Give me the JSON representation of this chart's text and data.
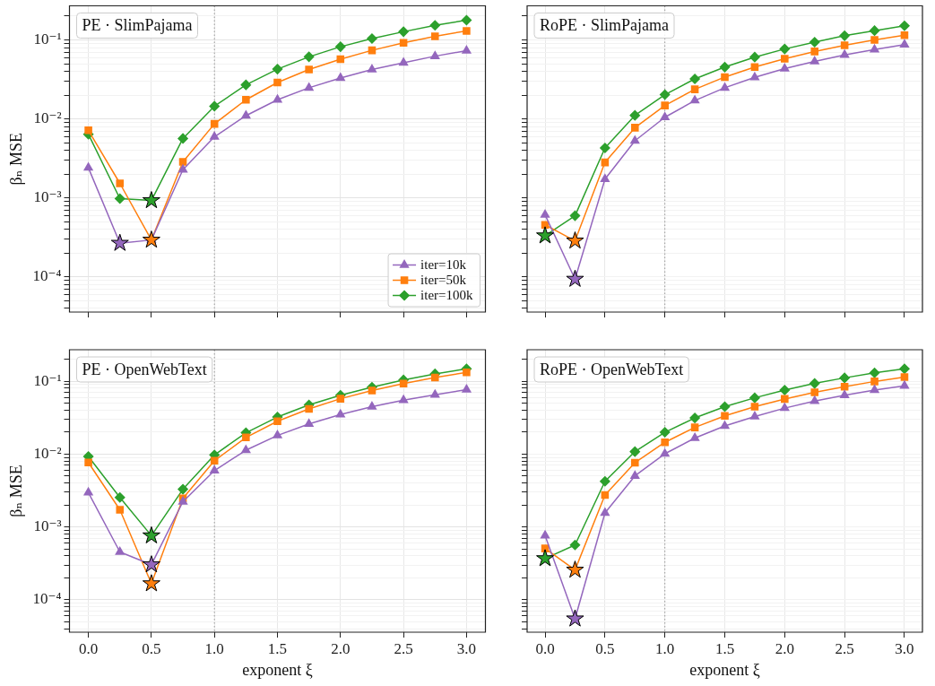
{
  "chart_data": [
    {
      "type": "line",
      "title": "PE · SlimPajama",
      "ylabel": "βₙ MSE",
      "x": [
        0,
        0.25,
        0.5,
        0.75,
        1,
        1.25,
        1.5,
        1.75,
        2,
        2.25,
        2.5,
        2.75,
        3
      ],
      "log": "y",
      "grid": true,
      "legend": "bottom right",
      "tick_labels": "y",
      "xlim": [
        -0.15,
        3.15
      ],
      "xticks": [
        {
          "value": 0,
          "label": null
        },
        {
          "value": 0.5,
          "label": null
        },
        {
          "value": 1,
          "label": null
        },
        {
          "value": 1.5,
          "label": null
        },
        {
          "value": 2,
          "label": null
        },
        {
          "value": 2.5,
          "label": null
        },
        {
          "value": 3,
          "label": null
        }
      ],
      "ylim": [
        3.6e-05,
        0.27
      ],
      "yticks": [
        {
          "value": 4e-05,
          "label": null
        },
        {
          "value": 5e-05,
          "label": null
        },
        {
          "value": 6e-05,
          "label": null
        },
        {
          "value": 7e-05,
          "label": null
        },
        {
          "value": 8e-05,
          "label": null
        },
        {
          "value": 9e-05,
          "label": null
        },
        {
          "value": 0.0001,
          "label": "10⁻⁴"
        },
        {
          "value": 0.0002,
          "label": null
        },
        {
          "value": 0.0003,
          "label": null
        },
        {
          "value": 0.0004,
          "label": null
        },
        {
          "value": 0.0005,
          "label": null
        },
        {
          "value": 0.0006,
          "label": null
        },
        {
          "value": 0.0007,
          "label": null
        },
        {
          "value": 0.0008,
          "label": null
        },
        {
          "value": 0.0009,
          "label": null
        },
        {
          "value": 0.001,
          "label": "10⁻³"
        },
        {
          "value": 0.002,
          "label": null
        },
        {
          "value": 0.003,
          "label": null
        },
        {
          "value": 0.004,
          "label": null
        },
        {
          "value": 0.005,
          "label": null
        },
        {
          "value": 0.006,
          "label": null
        },
        {
          "value": 0.007,
          "label": null
        },
        {
          "value": 0.008,
          "label": null
        },
        {
          "value": 0.009,
          "label": null
        },
        {
          "value": 0.01,
          "label": "10⁻²"
        },
        {
          "value": 0.02,
          "label": null
        },
        {
          "value": 0.03,
          "label": null
        },
        {
          "value": 0.04,
          "label": null
        },
        {
          "value": 0.05,
          "label": null
        },
        {
          "value": 0.06,
          "label": null
        },
        {
          "value": 0.07,
          "label": null
        },
        {
          "value": 0.08,
          "label": null
        },
        {
          "value": 0.09,
          "label": null
        },
        {
          "value": 0.1,
          "label": "10⁻¹"
        },
        {
          "value": 0.2,
          "label": null
        }
      ],
      "ref_lines": [
        {
          "axis": "x",
          "value": 1,
          "color": "#999999",
          "line_style": "dotted"
        }
      ],
      "series": [
        {
          "name": "iter=10k",
          "color": "#9467bd",
          "marker": "triangle",
          "values": [
            0.00241,
            0.000268,
            0.000294,
            0.00228,
            0.00594,
            0.011,
            0.0175,
            0.0248,
            0.033,
            0.0422,
            0.0515,
            0.0623,
            0.0731
          ]
        },
        {
          "name": "iter=50k",
          "color": "#ff7f0e",
          "marker": "square",
          "values": [
            0.00718,
            0.00153,
            0.000294,
            0.00286,
            0.00867,
            0.0175,
            0.0289,
            0.0422,
            0.0571,
            0.0738,
            0.0918,
            0.111,
            0.13
          ]
        },
        {
          "name": "iter=100k",
          "color": "#2ca02c",
          "marker": "diamond",
          "values": [
            0.00641,
            0.00098,
            0.00093,
            0.00566,
            0.0145,
            0.027,
            0.0427,
            0.0611,
            0.082,
            0.104,
            0.127,
            0.153,
            0.178
          ]
        },
        {
          "type": "scatter",
          "marker": "star",
          "x": [
            0.25,
            0.5,
            0.5
          ],
          "values": [
            0.000268,
            0.000294,
            0.00093
          ],
          "colors": [
            "#9467bd",
            "#ff7f0e",
            "#2ca02c"
          ]
        }
      ]
    },
    {
      "type": "line",
      "title": "RoPE · SlimPajama",
      "x": [
        0,
        0.25,
        0.5,
        0.75,
        1,
        1.25,
        1.5,
        1.75,
        2,
        2.25,
        2.5,
        2.75,
        3
      ],
      "log": "y",
      "grid": true,
      "tick_labels": false,
      "xlim": [
        -0.15,
        3.15
      ],
      "xticks": [
        {
          "value": 0,
          "label": null
        },
        {
          "value": 0.5,
          "label": null
        },
        {
          "value": 1,
          "label": null
        },
        {
          "value": 1.5,
          "label": null
        },
        {
          "value": 2,
          "label": null
        },
        {
          "value": 2.5,
          "label": null
        },
        {
          "value": 3,
          "label": null
        }
      ],
      "ylim": [
        3.6e-05,
        0.27
      ],
      "yticks": [
        {
          "value": 4e-05,
          "label": null
        },
        {
          "value": 5e-05,
          "label": null
        },
        {
          "value": 6e-05,
          "label": null
        },
        {
          "value": 7e-05,
          "label": null
        },
        {
          "value": 8e-05,
          "label": null
        },
        {
          "value": 9e-05,
          "label": null
        },
        {
          "value": 0.0001,
          "label": null
        },
        {
          "value": 0.0002,
          "label": null
        },
        {
          "value": 0.0003,
          "label": null
        },
        {
          "value": 0.0004,
          "label": null
        },
        {
          "value": 0.0005,
          "label": null
        },
        {
          "value": 0.0006,
          "label": null
        },
        {
          "value": 0.0007,
          "label": null
        },
        {
          "value": 0.0008,
          "label": null
        },
        {
          "value": 0.0009,
          "label": null
        },
        {
          "value": 0.001,
          "label": null
        },
        {
          "value": 0.002,
          "label": null
        },
        {
          "value": 0.003,
          "label": null
        },
        {
          "value": 0.004,
          "label": null
        },
        {
          "value": 0.005,
          "label": null
        },
        {
          "value": 0.006,
          "label": null
        },
        {
          "value": 0.007,
          "label": null
        },
        {
          "value": 0.008,
          "label": null
        },
        {
          "value": 0.009,
          "label": null
        },
        {
          "value": 0.01,
          "label": null
        },
        {
          "value": 0.02,
          "label": null
        },
        {
          "value": 0.03,
          "label": null
        },
        {
          "value": 0.04,
          "label": null
        },
        {
          "value": 0.05,
          "label": null
        },
        {
          "value": 0.06,
          "label": null
        },
        {
          "value": 0.07,
          "label": null
        },
        {
          "value": 0.08,
          "label": null
        },
        {
          "value": 0.09,
          "label": null
        },
        {
          "value": 0.1,
          "label": null
        },
        {
          "value": 0.2,
          "label": null
        }
      ],
      "ref_lines": [
        {
          "axis": "x",
          "value": 1,
          "color": "#999999",
          "line_style": "dotted"
        }
      ],
      "series": [
        {
          "color": "#9467bd",
          "marker": "triangle",
          "values": [
            0.000612,
            9.4e-05,
            0.00173,
            0.00529,
            0.0105,
            0.0171,
            0.0248,
            0.0336,
            0.0433,
            0.0534,
            0.0646,
            0.0754,
            0.0873
          ]
        },
        {
          "color": "#ff7f0e",
          "marker": "square",
          "values": [
            0.000457,
            0.000287,
            0.00282,
            0.00775,
            0.0148,
            0.0237,
            0.0339,
            0.0453,
            0.0579,
            0.0714,
            0.0857,
            0.1,
            0.115
          ]
        },
        {
          "color": "#2ca02c",
          "marker": "diamond",
          "values": [
            0.000333,
            0.000596,
            0.00429,
            0.0111,
            0.0203,
            0.0321,
            0.0453,
            0.0606,
            0.0768,
            0.0938,
            0.113,
            0.131,
            0.151
          ]
        },
        {
          "type": "scatter",
          "marker": "star",
          "x": [
            0.25,
            0.25,
            0
          ],
          "values": [
            9.4e-05,
            0.000287,
            0.000333
          ],
          "colors": [
            "#9467bd",
            "#ff7f0e",
            "#2ca02c"
          ]
        }
      ]
    },
    {
      "type": "line",
      "title": "PE · OpenWebText",
      "xlabel": "exponent ξ",
      "ylabel": "βₙ MSE",
      "x": [
        0,
        0.25,
        0.5,
        0.75,
        1,
        1.25,
        1.5,
        1.75,
        2,
        2.25,
        2.5,
        2.75,
        3
      ],
      "log": "y",
      "grid": true,
      "xlim": [
        -0.15,
        3.15
      ],
      "xticks": [
        {
          "value": 0,
          "label": "0.0"
        },
        {
          "value": 0.5,
          "label": "0.5"
        },
        {
          "value": 1,
          "label": "1.0"
        },
        {
          "value": 1.5,
          "label": "1.5"
        },
        {
          "value": 2,
          "label": "2.0"
        },
        {
          "value": 2.5,
          "label": "2.5"
        },
        {
          "value": 3,
          "label": "3.0"
        }
      ],
      "ylim": [
        3.6e-05,
        0.27
      ],
      "yticks": [
        {
          "value": 4e-05,
          "label": null
        },
        {
          "value": 5e-05,
          "label": null
        },
        {
          "value": 6e-05,
          "label": null
        },
        {
          "value": 7e-05,
          "label": null
        },
        {
          "value": 8e-05,
          "label": null
        },
        {
          "value": 9e-05,
          "label": null
        },
        {
          "value": 0.0001,
          "label": "10⁻⁴"
        },
        {
          "value": 0.0002,
          "label": null
        },
        {
          "value": 0.0003,
          "label": null
        },
        {
          "value": 0.0004,
          "label": null
        },
        {
          "value": 0.0005,
          "label": null
        },
        {
          "value": 0.0006,
          "label": null
        },
        {
          "value": 0.0007,
          "label": null
        },
        {
          "value": 0.0008,
          "label": null
        },
        {
          "value": 0.0009,
          "label": null
        },
        {
          "value": 0.001,
          "label": "10⁻³"
        },
        {
          "value": 0.002,
          "label": null
        },
        {
          "value": 0.003,
          "label": null
        },
        {
          "value": 0.004,
          "label": null
        },
        {
          "value": 0.005,
          "label": null
        },
        {
          "value": 0.006,
          "label": null
        },
        {
          "value": 0.007,
          "label": null
        },
        {
          "value": 0.008,
          "label": null
        },
        {
          "value": 0.009,
          "label": null
        },
        {
          "value": 0.01,
          "label": "10⁻²"
        },
        {
          "value": 0.02,
          "label": null
        },
        {
          "value": 0.03,
          "label": null
        },
        {
          "value": 0.04,
          "label": null
        },
        {
          "value": 0.05,
          "label": null
        },
        {
          "value": 0.06,
          "label": null
        },
        {
          "value": 0.07,
          "label": null
        },
        {
          "value": 0.08,
          "label": null
        },
        {
          "value": 0.09,
          "label": null
        },
        {
          "value": 0.1,
          "label": "10⁻¹"
        },
        {
          "value": 0.2,
          "label": null
        }
      ],
      "ref_lines": [
        {
          "axis": "x",
          "value": 1,
          "color": "#999999",
          "line_style": "dotted"
        }
      ],
      "series": [
        {
          "color": "#9467bd",
          "marker": "triangle",
          "values": [
            0.00296,
            0.000454,
            0.000304,
            0.00222,
            0.00593,
            0.0113,
            0.018,
            0.0259,
            0.0348,
            0.0446,
            0.0549,
            0.0652,
            0.0766
          ]
        },
        {
          "color": "#ff7f0e",
          "marker": "square",
          "values": [
            0.00766,
            0.00172,
            0.000167,
            0.00247,
            0.00811,
            0.0169,
            0.0282,
            0.0417,
            0.0575,
            0.0745,
            0.0927,
            0.112,
            0.132
          ]
        },
        {
          "color": "#2ca02c",
          "marker": "diamond",
          "values": [
            0.00927,
            0.00254,
            0.000759,
            0.00329,
            0.00972,
            0.0196,
            0.0322,
            0.0472,
            0.064,
            0.0826,
            0.104,
            0.126,
            0.148
          ]
        },
        {
          "type": "scatter",
          "marker": "star",
          "x": [
            0.5,
            0.5,
            0.5
          ],
          "values": [
            0.000304,
            0.000167,
            0.000759
          ],
          "colors": [
            "#9467bd",
            "#ff7f0e",
            "#2ca02c"
          ]
        }
      ]
    },
    {
      "type": "line",
      "title": "RoPE · OpenWebText",
      "xlabel": "exponent ξ",
      "x": [
        0,
        0.25,
        0.5,
        0.75,
        1,
        1.25,
        1.5,
        1.75,
        2,
        2.25,
        2.5,
        2.75,
        3
      ],
      "log": "y",
      "grid": true,
      "tick_labels": "x",
      "xlim": [
        -0.15,
        3.15
      ],
      "xticks": [
        {
          "value": 0,
          "label": "0.0"
        },
        {
          "value": 0.5,
          "label": "0.5"
        },
        {
          "value": 1,
          "label": "1.0"
        },
        {
          "value": 1.5,
          "label": "1.5"
        },
        {
          "value": 2,
          "label": "2.0"
        },
        {
          "value": 2.5,
          "label": "2.5"
        },
        {
          "value": 3,
          "label": "3.0"
        }
      ],
      "ylim": [
        3.6e-05,
        0.27
      ],
      "yticks": [
        {
          "value": 4e-05,
          "label": null
        },
        {
          "value": 5e-05,
          "label": null
        },
        {
          "value": 6e-05,
          "label": null
        },
        {
          "value": 7e-05,
          "label": null
        },
        {
          "value": 8e-05,
          "label": null
        },
        {
          "value": 9e-05,
          "label": null
        },
        {
          "value": 0.0001,
          "label": null
        },
        {
          "value": 0.0002,
          "label": null
        },
        {
          "value": 0.0003,
          "label": null
        },
        {
          "value": 0.0004,
          "label": null
        },
        {
          "value": 0.0005,
          "label": null
        },
        {
          "value": 0.0006,
          "label": null
        },
        {
          "value": 0.0007,
          "label": null
        },
        {
          "value": 0.0008,
          "label": null
        },
        {
          "value": 0.0009,
          "label": null
        },
        {
          "value": 0.001,
          "label": null
        },
        {
          "value": 0.002,
          "label": null
        },
        {
          "value": 0.003,
          "label": null
        },
        {
          "value": 0.004,
          "label": null
        },
        {
          "value": 0.005,
          "label": null
        },
        {
          "value": 0.006,
          "label": null
        },
        {
          "value": 0.007,
          "label": null
        },
        {
          "value": 0.008,
          "label": null
        },
        {
          "value": 0.009,
          "label": null
        },
        {
          "value": 0.01,
          "label": null
        },
        {
          "value": 0.02,
          "label": null
        },
        {
          "value": 0.03,
          "label": null
        },
        {
          "value": 0.04,
          "label": null
        },
        {
          "value": 0.05,
          "label": null
        },
        {
          "value": 0.06,
          "label": null
        },
        {
          "value": 0.07,
          "label": null
        },
        {
          "value": 0.08,
          "label": null
        },
        {
          "value": 0.09,
          "label": null
        },
        {
          "value": 0.1,
          "label": null
        },
        {
          "value": 0.2,
          "label": null
        }
      ],
      "ref_lines": [
        {
          "axis": "x",
          "value": 1,
          "color": "#999999",
          "line_style": "dotted"
        }
      ],
      "series": [
        {
          "color": "#9467bd",
          "marker": "triangle",
          "values": [
            0.000762,
            5.5e-05,
            0.00156,
            0.00502,
            0.0101,
            0.0166,
            0.0243,
            0.0328,
            0.0427,
            0.0535,
            0.0641,
            0.0755,
            0.0865
          ]
        },
        {
          "color": "#ff7f0e",
          "marker": "square",
          "values": [
            0.000507,
            0.000257,
            0.00274,
            0.00762,
            0.0145,
            0.0232,
            0.0334,
            0.0447,
            0.057,
            0.0702,
            0.0841,
            0.0991,
            0.114
          ]
        },
        {
          "color": "#2ca02c",
          "marker": "diamond",
          "values": [
            0.000369,
            0.000565,
            0.00423,
            0.0108,
            0.0199,
            0.0313,
            0.0447,
            0.0591,
            0.0755,
            0.0931,
            0.111,
            0.13,
            0.148
          ]
        },
        {
          "type": "scatter",
          "marker": "star",
          "x": [
            0.25,
            0.25,
            0
          ],
          "values": [
            5.5e-05,
            0.000257,
            0.000369
          ],
          "colors": [
            "#9467bd",
            "#ff7f0e",
            "#2ca02c"
          ]
        }
      ]
    }
  ]
}
